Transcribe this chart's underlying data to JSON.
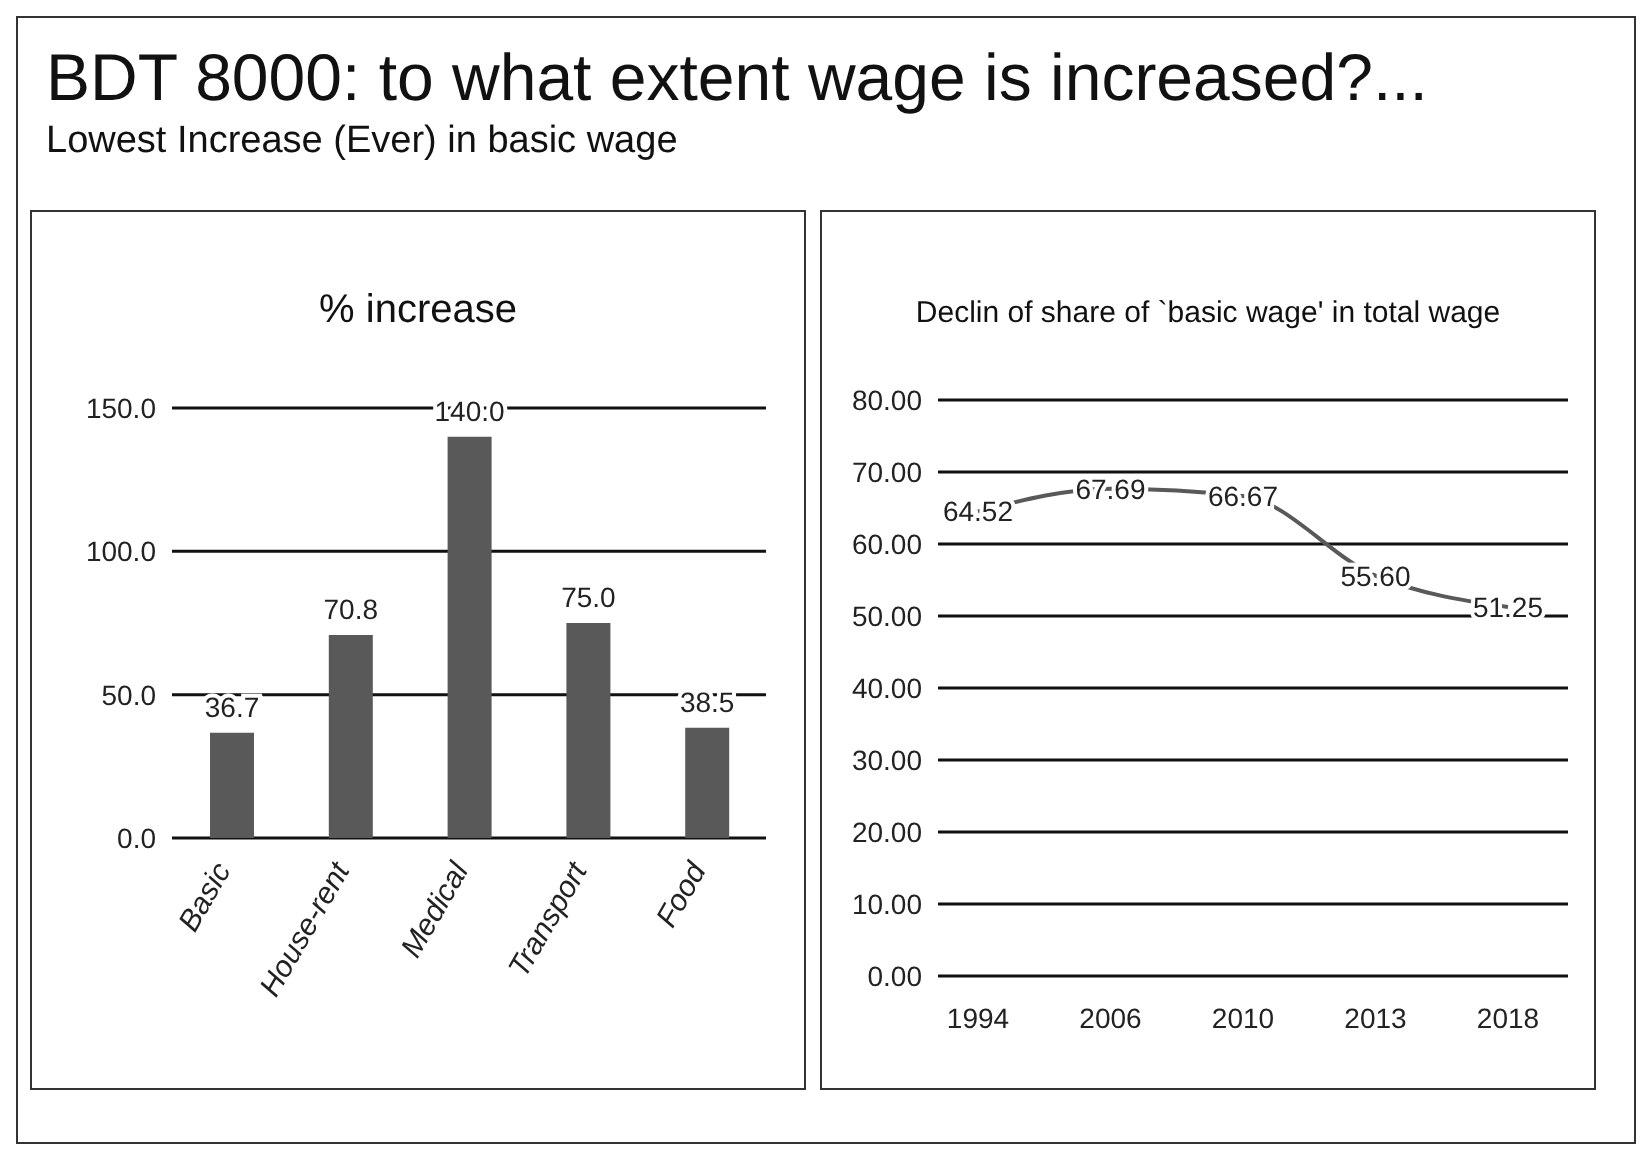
{
  "chart_data": [
    {
      "type": "other",
      "title": "BDT 8000: to what extent wage is increased?...",
      "subtitle": "Lowest Increase (Ever) in basic wage"
    },
    {
      "type": "bar",
      "title": "% increase",
      "categories": [
        "Basic",
        "House-rent",
        "Medical",
        "Transport",
        "Food"
      ],
      "values": [
        36.7,
        70.8,
        140.0,
        75.0,
        38.5
      ],
      "value_labels": [
        "36.7",
        "70.8",
        "140.0",
        "75.0",
        "38.5"
      ],
      "color": "#595959",
      "ylim": [
        0,
        150
      ],
      "yticks": [
        {
          "value": 0,
          "label": "0.0"
        },
        {
          "value": 50,
          "label": "50.0"
        },
        {
          "value": 100,
          "label": "100.0"
        },
        {
          "value": 150,
          "label": "150.0"
        }
      ],
      "grid": "y"
    },
    {
      "type": "line",
      "title": "Declin of share of `basic wage' in total wage",
      "categories": [
        "1994",
        "2006",
        "2010",
        "2013",
        "2018"
      ],
      "values": [
        64.52,
        67.69,
        66.67,
        55.6,
        51.25
      ],
      "value_labels": [
        "64.52",
        "67.69",
        "66.67",
        "55.60",
        "51.25"
      ],
      "color": "#595959",
      "ylim": [
        0,
        80
      ],
      "yticks": [
        {
          "value": 0,
          "label": "0.00"
        },
        {
          "value": 10,
          "label": "10.00"
        },
        {
          "value": 20,
          "label": "20.00"
        },
        {
          "value": 30,
          "label": "30.00"
        },
        {
          "value": 40,
          "label": "40.00"
        },
        {
          "value": 50,
          "label": "50.00"
        },
        {
          "value": 60,
          "label": "60.00"
        },
        {
          "value": 70,
          "label": "70.00"
        },
        {
          "value": 80,
          "label": "80.00"
        }
      ],
      "grid": "y"
    }
  ]
}
